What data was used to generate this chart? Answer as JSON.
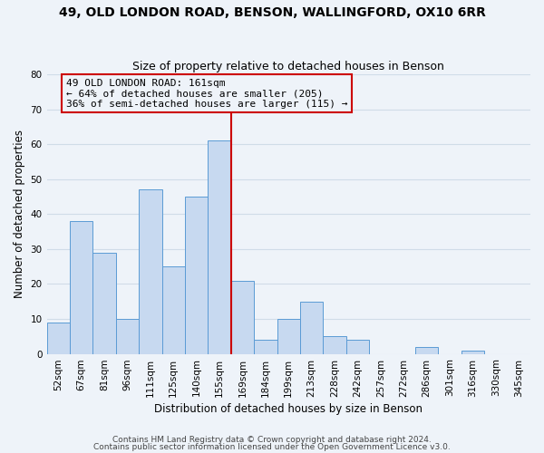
{
  "title": "49, OLD LONDON ROAD, BENSON, WALLINGFORD, OX10 6RR",
  "subtitle": "Size of property relative to detached houses in Benson",
  "xlabel": "Distribution of detached houses by size in Benson",
  "ylabel": "Number of detached properties",
  "bar_labels": [
    "52sqm",
    "67sqm",
    "81sqm",
    "96sqm",
    "111sqm",
    "125sqm",
    "140sqm",
    "155sqm",
    "169sqm",
    "184sqm",
    "199sqm",
    "213sqm",
    "228sqm",
    "242sqm",
    "257sqm",
    "272sqm",
    "286sqm",
    "301sqm",
    "316sqm",
    "330sqm",
    "345sqm"
  ],
  "bar_values": [
    9,
    38,
    29,
    10,
    47,
    25,
    45,
    61,
    21,
    4,
    10,
    15,
    5,
    4,
    0,
    0,
    2,
    0,
    1,
    0,
    0
  ],
  "bar_color": "#c7d9f0",
  "bar_edge_color": "#5b9bd5",
  "highlight_bar_index": 7,
  "highlight_line_color": "#cc0000",
  "annotation_line1": "49 OLD LONDON ROAD: 161sqm",
  "annotation_line2": "← 64% of detached houses are smaller (205)",
  "annotation_line3": "36% of semi-detached houses are larger (115) →",
  "annotation_box_color": "#cc0000",
  "ylim": [
    0,
    80
  ],
  "yticks": [
    0,
    10,
    20,
    30,
    40,
    50,
    60,
    70,
    80
  ],
  "footer1": "Contains HM Land Registry data © Crown copyright and database right 2024.",
  "footer2": "Contains public sector information licensed under the Open Government Licence v3.0.",
  "grid_color": "#d0dce8",
  "background_color": "#eef3f9",
  "title_fontsize": 10,
  "subtitle_fontsize": 9,
  "axis_label_fontsize": 8.5,
  "tick_fontsize": 7.5,
  "annotation_fontsize": 8,
  "footer_fontsize": 6.5
}
